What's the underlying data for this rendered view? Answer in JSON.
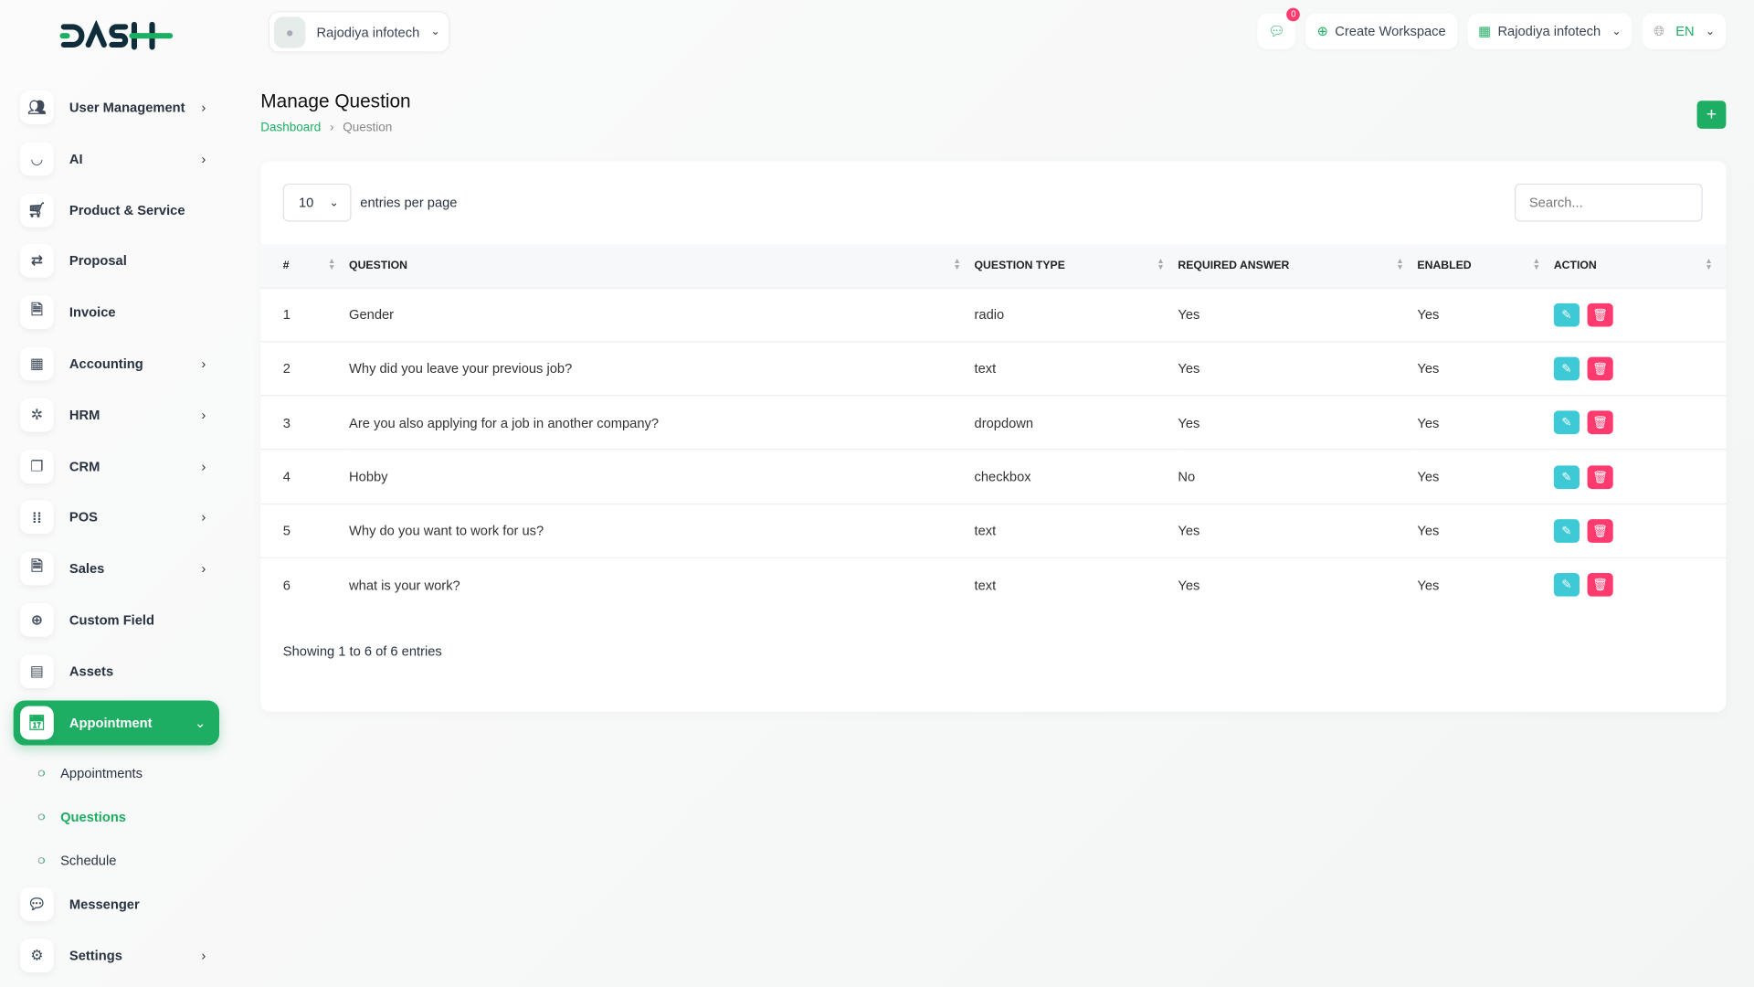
{
  "brand": {
    "logo_text": "DASH",
    "accent": "#1eae63"
  },
  "header": {
    "user_name": "Rajodiya infotech",
    "notification_count": "0",
    "create_workspace": "Create Workspace",
    "workspace": "Rajodiya infotech",
    "language": "EN"
  },
  "sidebar": {
    "items": [
      {
        "label": "User Management",
        "icon": "users-icon",
        "chev": true
      },
      {
        "label": "AI",
        "icon": "ai-icon",
        "chev": true
      },
      {
        "label": "Product & Service",
        "icon": "cart-icon",
        "chev": false
      },
      {
        "label": "Proposal",
        "icon": "proposal-icon",
        "chev": false
      },
      {
        "label": "Invoice",
        "icon": "file-icon",
        "chev": false
      },
      {
        "label": "Accounting",
        "icon": "grid-icon",
        "chev": true
      },
      {
        "label": "HRM",
        "icon": "hrm-icon",
        "chev": true
      },
      {
        "label": "CRM",
        "icon": "crm-icon",
        "chev": true
      },
      {
        "label": "POS",
        "icon": "pos-icon",
        "chev": true
      },
      {
        "label": "Sales",
        "icon": "file-icon",
        "chev": true
      },
      {
        "label": "Custom Field",
        "icon": "plus-circle-icon",
        "chev": false
      },
      {
        "label": "Assets",
        "icon": "calculator-icon",
        "chev": false
      },
      {
        "label": "Appointment",
        "icon": "calendar-icon",
        "chev": true,
        "active": true
      }
    ],
    "sub_items": [
      {
        "label": "Appointments"
      },
      {
        "label": "Questions",
        "active": true
      },
      {
        "label": "Schedule"
      }
    ],
    "bottom_items": [
      {
        "label": "Messenger",
        "icon": "chat-icon",
        "chev": false
      },
      {
        "label": "Settings",
        "icon": "gear-icon",
        "chev": true
      }
    ]
  },
  "page": {
    "title": "Manage Question",
    "breadcrumb": [
      "Dashboard",
      "Question"
    ]
  },
  "table": {
    "per_page": "10",
    "entries_label": "entries per page",
    "search_placeholder": "Search...",
    "columns": [
      "#",
      "QUESTION",
      "QUESTION TYPE",
      "REQUIRED ANSWER",
      "ENABLED",
      "ACTION"
    ],
    "rows": [
      [
        "1",
        "Gender",
        "radio",
        "Yes",
        "Yes"
      ],
      [
        "2",
        "Why did you leave your previous job?",
        "text",
        "Yes",
        "Yes"
      ],
      [
        "3",
        "Are you also applying for a job in another company?",
        "dropdown",
        "Yes",
        "Yes"
      ],
      [
        "4",
        "Hobby",
        "checkbox",
        "No",
        "Yes"
      ],
      [
        "5",
        "Why do you want to work for us?",
        "text",
        "Yes",
        "Yes"
      ],
      [
        "6",
        "what is your work?",
        "text",
        "Yes",
        "Yes"
      ]
    ],
    "footer": "Showing 1 to 6 of 6 entries"
  }
}
